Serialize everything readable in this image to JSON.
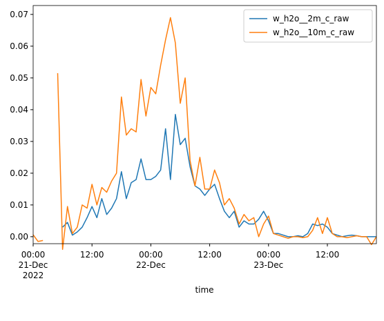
{
  "chart_data": {
    "type": "line",
    "xlabel": "time",
    "x": [
      "2022-12-21 00:00",
      "2022-12-21 01:00",
      "2022-12-21 02:00",
      "2022-12-21 03:00",
      "2022-12-21 04:00",
      "2022-12-21 05:00",
      "2022-12-21 06:00",
      "2022-12-21 07:00",
      "2022-12-21 08:00",
      "2022-12-21 09:00",
      "2022-12-21 10:00",
      "2022-12-21 11:00",
      "2022-12-21 12:00",
      "2022-12-21 13:00",
      "2022-12-21 14:00",
      "2022-12-21 15:00",
      "2022-12-21 16:00",
      "2022-12-21 17:00",
      "2022-12-21 18:00",
      "2022-12-21 19:00",
      "2022-12-21 20:00",
      "2022-12-21 21:00",
      "2022-12-21 22:00",
      "2022-12-21 23:00",
      "2022-12-22 00:00",
      "2022-12-22 01:00",
      "2022-12-22 02:00",
      "2022-12-22 03:00",
      "2022-12-22 04:00",
      "2022-12-22 05:00",
      "2022-12-22 06:00",
      "2022-12-22 07:00",
      "2022-12-22 08:00",
      "2022-12-22 09:00",
      "2022-12-22 10:00",
      "2022-12-22 11:00",
      "2022-12-22 12:00",
      "2022-12-22 13:00",
      "2022-12-22 14:00",
      "2022-12-22 15:00",
      "2022-12-22 16:00",
      "2022-12-22 17:00",
      "2022-12-22 18:00",
      "2022-12-22 19:00",
      "2022-12-22 20:00",
      "2022-12-22 21:00",
      "2022-12-22 22:00",
      "2022-12-22 23:00",
      "2022-12-23 00:00",
      "2022-12-23 01:00",
      "2022-12-23 02:00",
      "2022-12-23 03:00",
      "2022-12-23 04:00",
      "2022-12-23 05:00",
      "2022-12-23 06:00",
      "2022-12-23 07:00",
      "2022-12-23 08:00",
      "2022-12-23 09:00",
      "2022-12-23 10:00",
      "2022-12-23 11:00",
      "2022-12-23 12:00",
      "2022-12-23 13:00",
      "2022-12-23 14:00",
      "2022-12-23 15:00",
      "2022-12-23 16:00",
      "2022-12-23 17:00",
      "2022-12-23 18:00",
      "2022-12-23 19:00",
      "2022-12-23 20:00",
      "2022-12-23 21:00",
      "2022-12-23 22:00"
    ],
    "series": [
      {
        "name": "w_h2o__2m_c_raw",
        "color": "#1f77b4",
        "values": [
          null,
          null,
          null,
          null,
          null,
          null,
          0.003,
          0.0045,
          0.0005,
          0.0015,
          0.003,
          0.006,
          0.0095,
          0.006,
          0.012,
          0.007,
          0.009,
          0.012,
          0.0205,
          0.012,
          0.017,
          0.018,
          0.0245,
          0.018,
          0.018,
          0.019,
          0.021,
          0.034,
          0.018,
          0.0385,
          0.029,
          0.031,
          0.022,
          0.016,
          0.015,
          0.013,
          0.015,
          0.0165,
          0.012,
          0.008,
          0.006,
          0.008,
          0.003,
          0.005,
          0.004,
          0.004,
          0.0055,
          0.008,
          0.005,
          0.001,
          0.001,
          0.0005,
          0,
          0,
          0.0003,
          0,
          0.001,
          0.004,
          0.0035,
          0.004,
          0.003,
          0.001,
          0.0005,
          0,
          0.0003,
          0.0005,
          0.0003,
          0,
          0,
          0,
          0
        ]
      },
      {
        "name": "w_h2o__10m_c_raw",
        "color": "#ff7f0e",
        "values": [
          0.0006,
          -0.0015,
          -0.0012,
          null,
          null,
          0.0515,
          -0.004,
          0.0095,
          0.001,
          0.003,
          0.01,
          0.009,
          0.0165,
          0.01,
          0.0155,
          0.014,
          0.0175,
          0.02,
          0.044,
          0.032,
          0.034,
          0.033,
          0.0495,
          0.038,
          0.047,
          0.045,
          0.054,
          0.062,
          0.069,
          0.061,
          0.042,
          0.05,
          0.024,
          0.016,
          0.025,
          0.015,
          0.015,
          0.021,
          0.017,
          0.01,
          0.012,
          0.009,
          0.004,
          0.007,
          0.005,
          0.006,
          0,
          0.004,
          0.0065,
          0.001,
          0.0005,
          0,
          -0.0005,
          0,
          0,
          -0.0003,
          0,
          0.002,
          0.006,
          0.001,
          0.006,
          0.001,
          0,
          0,
          -0.0003,
          0,
          0.0003,
          0,
          0,
          -0.0025,
          0
        ]
      }
    ],
    "xlim": [
      "2022-12-21 00:00",
      "2022-12-23 22:00"
    ],
    "xticks": [
      {
        "value": "2022-12-21 00:00",
        "label": [
          "00:00",
          "21-Dec",
          "2022"
        ]
      },
      {
        "value": "2022-12-21 12:00",
        "label": [
          "12:00"
        ]
      },
      {
        "value": "2022-12-22 00:00",
        "label": [
          "00:00",
          "22-Dec"
        ]
      },
      {
        "value": "2022-12-22 12:00",
        "label": [
          "12:00"
        ]
      },
      {
        "value": "2022-12-23 00:00",
        "label": [
          "00:00",
          "23-Dec"
        ]
      },
      {
        "value": "2022-12-23 12:00",
        "label": [
          "12:00"
        ]
      }
    ],
    "ylim": [
      -0.0022,
      0.0728
    ],
    "yticks": [
      {
        "value": 0,
        "label": "0.00"
      },
      {
        "value": 0.01,
        "label": "0.01"
      },
      {
        "value": 0.02,
        "label": "0.02"
      },
      {
        "value": 0.03,
        "label": "0.03"
      },
      {
        "value": 0.04,
        "label": "0.04"
      },
      {
        "value": 0.05,
        "label": "0.05"
      },
      {
        "value": 0.06,
        "label": "0.06"
      },
      {
        "value": 0.07,
        "label": "0.07"
      }
    ],
    "grid": false,
    "legend": "upper right"
  }
}
